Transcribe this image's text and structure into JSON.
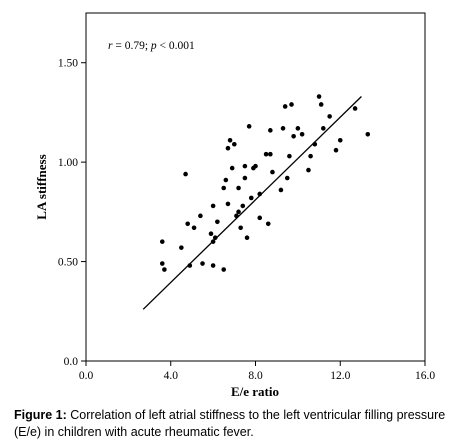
{
  "chart_data": {
    "type": "scatter",
    "title": "",
    "xlabel": "E/e ratio",
    "ylabel": "LA stiffness",
    "xlim": [
      0.0,
      16.0
    ],
    "ylim": [
      0.0,
      1.75
    ],
    "x_ticks": [
      "0.0",
      "4.0",
      "8.0",
      "12.0",
      "16.0"
    ],
    "y_ticks": [
      "0.0",
      "0.50",
      "1.00",
      "1.50"
    ],
    "annotation": {
      "r": "r",
      "r_value": " = 0.79; ",
      "p": "p",
      "p_value": " < 0.001"
    },
    "grid": false,
    "legend": false,
    "regression_line": {
      "x": [
        2.7,
        13.0
      ],
      "y": [
        0.26,
        1.33
      ]
    },
    "points": [
      {
        "x": 3.6,
        "y": 0.6
      },
      {
        "x": 3.6,
        "y": 0.49
      },
      {
        "x": 3.7,
        "y": 0.46
      },
      {
        "x": 4.5,
        "y": 0.57
      },
      {
        "x": 4.7,
        "y": 0.94
      },
      {
        "x": 4.8,
        "y": 0.69
      },
      {
        "x": 4.9,
        "y": 0.48
      },
      {
        "x": 5.1,
        "y": 0.67
      },
      {
        "x": 5.4,
        "y": 0.73
      },
      {
        "x": 5.5,
        "y": 0.49
      },
      {
        "x": 5.9,
        "y": 0.64
      },
      {
        "x": 6.0,
        "y": 0.78
      },
      {
        "x": 6.0,
        "y": 0.6
      },
      {
        "x": 6.0,
        "y": 0.48
      },
      {
        "x": 6.1,
        "y": 0.62
      },
      {
        "x": 6.2,
        "y": 0.7
      },
      {
        "x": 6.5,
        "y": 0.46
      },
      {
        "x": 6.5,
        "y": 0.87
      },
      {
        "x": 6.6,
        "y": 0.91
      },
      {
        "x": 6.7,
        "y": 0.79
      },
      {
        "x": 6.7,
        "y": 1.07
      },
      {
        "x": 6.8,
        "y": 1.11
      },
      {
        "x": 6.9,
        "y": 0.97
      },
      {
        "x": 7.0,
        "y": 1.09
      },
      {
        "x": 7.1,
        "y": 0.73
      },
      {
        "x": 7.2,
        "y": 0.87
      },
      {
        "x": 7.2,
        "y": 0.75
      },
      {
        "x": 7.3,
        "y": 0.67
      },
      {
        "x": 7.4,
        "y": 0.78
      },
      {
        "x": 7.5,
        "y": 0.92
      },
      {
        "x": 7.5,
        "y": 0.98
      },
      {
        "x": 7.6,
        "y": 0.62
      },
      {
        "x": 7.7,
        "y": 1.18
      },
      {
        "x": 7.8,
        "y": 0.82
      },
      {
        "x": 7.9,
        "y": 0.97
      },
      {
        "x": 8.0,
        "y": 0.98
      },
      {
        "x": 8.2,
        "y": 0.72
      },
      {
        "x": 8.2,
        "y": 0.84
      },
      {
        "x": 8.5,
        "y": 1.04
      },
      {
        "x": 8.6,
        "y": 0.69
      },
      {
        "x": 8.7,
        "y": 1.16
      },
      {
        "x": 8.7,
        "y": 1.04
      },
      {
        "x": 8.8,
        "y": 0.95
      },
      {
        "x": 9.2,
        "y": 0.86
      },
      {
        "x": 9.3,
        "y": 1.17
      },
      {
        "x": 9.4,
        "y": 1.28
      },
      {
        "x": 9.5,
        "y": 0.92
      },
      {
        "x": 9.6,
        "y": 1.03
      },
      {
        "x": 9.7,
        "y": 1.29
      },
      {
        "x": 9.8,
        "y": 1.13
      },
      {
        "x": 10.0,
        "y": 1.17
      },
      {
        "x": 10.2,
        "y": 1.14
      },
      {
        "x": 10.5,
        "y": 0.96
      },
      {
        "x": 10.6,
        "y": 1.03
      },
      {
        "x": 10.8,
        "y": 1.09
      },
      {
        "x": 11.0,
        "y": 1.33
      },
      {
        "x": 11.1,
        "y": 1.29
      },
      {
        "x": 11.2,
        "y": 1.17
      },
      {
        "x": 11.5,
        "y": 1.23
      },
      {
        "x": 11.8,
        "y": 1.06
      },
      {
        "x": 12.0,
        "y": 1.11
      },
      {
        "x": 12.7,
        "y": 1.27
      },
      {
        "x": 13.3,
        "y": 1.14
      }
    ]
  },
  "caption": {
    "label": "Figure 1:",
    "text": " Correlation of left atrial stiffness to the left ventricular filling pressure (E/e) in children with acute rheumatic fever."
  }
}
